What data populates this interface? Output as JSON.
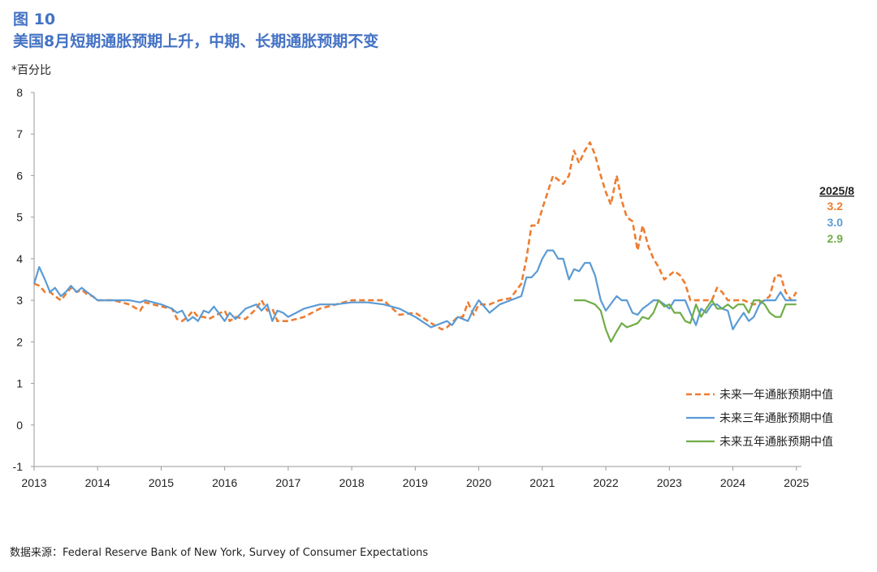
{
  "figure": {
    "label": "图 10",
    "title": "美国8月短期通胀预期上升，中期、长期通胀预期不变",
    "unit_note": "*百分比",
    "source": "数据来源：Federal Reserve Bank of New York, Survey of Consumer Expectations"
  },
  "chart_data": {
    "type": "line",
    "ylim": [
      -1,
      8
    ],
    "yticks": [
      -1,
      0,
      1,
      2,
      3,
      4,
      5,
      6,
      7,
      8
    ],
    "xlim": [
      2013,
      2025.1
    ],
    "xticks": [
      "2013",
      "2014",
      "2015",
      "2016",
      "2017",
      "2018",
      "2019",
      "2020",
      "2021",
      "2022",
      "2023",
      "2024",
      "2025"
    ],
    "grid": false,
    "legend_position": "bottom-right",
    "end_annotation": {
      "header": "2025/8",
      "values": [
        "3.2",
        "3.0",
        "2.9"
      ]
    },
    "series": [
      {
        "name": "未来一年通胀预期中值",
        "color": "#ed7d31",
        "style": "dashed",
        "x": [
          2013.0,
          2013.08,
          2013.17,
          2013.25,
          2013.33,
          2013.42,
          2013.5,
          2013.58,
          2013.67,
          2013.75,
          2013.83,
          2013.92,
          2014.0,
          2014.25,
          2014.5,
          2014.67,
          2014.75,
          2015.0,
          2015.17,
          2015.25,
          2015.33,
          2015.42,
          2015.5,
          2015.58,
          2015.67,
          2015.75,
          2016.0,
          2016.08,
          2016.17,
          2016.33,
          2016.5,
          2016.58,
          2016.67,
          2016.75,
          2016.83,
          2017.0,
          2017.25,
          2017.5,
          2017.75,
          2018.0,
          2018.25,
          2018.5,
          2018.75,
          2019.0,
          2019.25,
          2019.42,
          2019.5,
          2019.67,
          2019.75,
          2019.83,
          2019.92,
          2020.0,
          2020.17,
          2020.33,
          2020.5,
          2020.67,
          2020.75,
          2020.83,
          2020.92,
          2021.0,
          2021.17,
          2021.33,
          2021.42,
          2021.5,
          2021.58,
          2021.67,
          2021.75,
          2021.83,
          2021.92,
          2022.0,
          2022.08,
          2022.17,
          2022.25,
          2022.33,
          2022.42,
          2022.5,
          2022.58,
          2022.67,
          2022.75,
          2022.83,
          2022.92,
          2023.0,
          2023.08,
          2023.17,
          2023.25,
          2023.33,
          2023.42,
          2023.5,
          2023.58,
          2023.67,
          2023.75,
          2023.83,
          2023.92,
          2024.0,
          2024.17,
          2024.25,
          2024.33,
          2024.42,
          2024.5,
          2024.58,
          2024.67,
          2024.75,
          2024.83,
          2024.92,
          2025.0
        ],
        "y": [
          3.4,
          3.35,
          3.2,
          3.2,
          3.1,
          3.0,
          3.15,
          3.3,
          3.2,
          3.25,
          3.15,
          3.1,
          3.0,
          3.0,
          2.9,
          2.75,
          2.95,
          2.85,
          2.8,
          2.55,
          2.5,
          2.6,
          2.75,
          2.6,
          2.6,
          2.55,
          2.75,
          2.5,
          2.6,
          2.55,
          2.8,
          3.0,
          2.75,
          2.8,
          2.5,
          2.5,
          2.6,
          2.8,
          2.9,
          3.0,
          3.0,
          3.0,
          2.65,
          2.7,
          2.45,
          2.3,
          2.35,
          2.6,
          2.6,
          2.95,
          2.65,
          2.9,
          2.9,
          3.0,
          3.05,
          3.4,
          4.0,
          4.8,
          4.8,
          5.2,
          6.0,
          5.8,
          6.0,
          6.6,
          6.3,
          6.6,
          6.8,
          6.5,
          6.0,
          5.6,
          5.3,
          6.0,
          5.4,
          5.0,
          4.9,
          4.2,
          4.8,
          4.3,
          4.0,
          3.8,
          3.5,
          3.6,
          3.7,
          3.6,
          3.4,
          3.0,
          3.0,
          3.0,
          3.0,
          3.0,
          3.3,
          3.2,
          3.0,
          3.0,
          3.0,
          2.95,
          2.9,
          2.95,
          3.0,
          3.1,
          3.6,
          3.6,
          3.2,
          3.0,
          3.2
        ]
      },
      {
        "name": "未来三年通胀预期中值",
        "color": "#5b9bd5",
        "style": "solid",
        "x": [
          2013.0,
          2013.08,
          2013.17,
          2013.25,
          2013.33,
          2013.42,
          2013.5,
          2013.58,
          2013.67,
          2013.75,
          2013.83,
          2013.92,
          2014.0,
          2014.25,
          2014.5,
          2014.67,
          2014.75,
          2015.0,
          2015.17,
          2015.25,
          2015.33,
          2015.42,
          2015.5,
          2015.58,
          2015.67,
          2015.75,
          2015.83,
          2016.0,
          2016.08,
          2016.17,
          2016.33,
          2016.5,
          2016.58,
          2016.67,
          2016.75,
          2016.83,
          2016.92,
          2017.0,
          2017.25,
          2017.5,
          2017.75,
          2018.0,
          2018.25,
          2018.5,
          2018.75,
          2019.0,
          2019.25,
          2019.5,
          2019.58,
          2019.67,
          2019.75,
          2019.83,
          2019.92,
          2020.0,
          2020.17,
          2020.33,
          2020.5,
          2020.67,
          2020.75,
          2020.83,
          2020.92,
          2021.0,
          2021.08,
          2021.17,
          2021.25,
          2021.33,
          2021.42,
          2021.5,
          2021.58,
          2021.67,
          2021.75,
          2021.83,
          2021.92,
          2022.0,
          2022.17,
          2022.25,
          2022.33,
          2022.42,
          2022.5,
          2022.58,
          2022.67,
          2022.75,
          2022.83,
          2022.92,
          2023.0,
          2023.08,
          2023.17,
          2023.25,
          2023.33,
          2023.42,
          2023.5,
          2023.58,
          2023.67,
          2023.75,
          2023.83,
          2023.92,
          2024.0,
          2024.08,
          2024.17,
          2024.25,
          2024.33,
          2024.42,
          2024.5,
          2024.58,
          2024.67,
          2024.75,
          2024.83,
          2024.92,
          2025.0
        ],
        "y": [
          3.4,
          3.8,
          3.5,
          3.2,
          3.3,
          3.1,
          3.2,
          3.35,
          3.2,
          3.3,
          3.2,
          3.1,
          3.0,
          3.0,
          3.0,
          2.95,
          3.0,
          2.9,
          2.8,
          2.7,
          2.75,
          2.5,
          2.6,
          2.5,
          2.75,
          2.7,
          2.85,
          2.5,
          2.7,
          2.55,
          2.8,
          2.9,
          2.75,
          2.9,
          2.5,
          2.75,
          2.7,
          2.6,
          2.8,
          2.9,
          2.9,
          2.95,
          2.95,
          2.9,
          2.8,
          2.6,
          2.35,
          2.5,
          2.4,
          2.6,
          2.55,
          2.5,
          2.8,
          3.0,
          2.7,
          2.9,
          3.0,
          3.1,
          3.55,
          3.55,
          3.7,
          4.0,
          4.2,
          4.2,
          4.0,
          4.0,
          3.5,
          3.75,
          3.7,
          3.9,
          3.9,
          3.6,
          3.0,
          2.75,
          3.1,
          3.0,
          3.0,
          2.7,
          2.65,
          2.8,
          2.9,
          3.0,
          3.0,
          2.9,
          2.8,
          3.0,
          3.0,
          3.0,
          2.7,
          2.4,
          2.8,
          2.7,
          2.9,
          2.9,
          2.8,
          2.75,
          2.3,
          2.5,
          2.7,
          2.5,
          2.6,
          2.9,
          3.0,
          3.0,
          3.0,
          3.2,
          3.0,
          3.0,
          3.0
        ]
      },
      {
        "name": "未来五年通胀预期中值",
        "color": "#70ad47",
        "style": "solid",
        "x": [
          2021.5,
          2021.67,
          2021.83,
          2021.92,
          2022.0,
          2022.08,
          2022.17,
          2022.25,
          2022.33,
          2022.42,
          2022.5,
          2022.58,
          2022.67,
          2022.75,
          2022.83,
          2022.92,
          2023.0,
          2023.08,
          2023.17,
          2023.25,
          2023.33,
          2023.42,
          2023.5,
          2023.58,
          2023.67,
          2023.75,
          2023.83,
          2023.92,
          2024.0,
          2024.08,
          2024.17,
          2024.25,
          2024.33,
          2024.42,
          2024.5,
          2024.58,
          2024.67,
          2024.75,
          2024.83,
          2024.92,
          2025.0
        ],
        "y": [
          3.0,
          3.0,
          2.9,
          2.75,
          2.3,
          2.0,
          2.25,
          2.45,
          2.35,
          2.4,
          2.45,
          2.6,
          2.55,
          2.7,
          3.0,
          2.85,
          2.9,
          2.7,
          2.7,
          2.5,
          2.45,
          2.9,
          2.6,
          2.8,
          3.0,
          2.8,
          2.8,
          2.9,
          2.8,
          2.9,
          2.9,
          2.7,
          3.0,
          3.0,
          2.9,
          2.7,
          2.6,
          2.6,
          2.9,
          2.9,
          2.9
        ]
      }
    ]
  }
}
